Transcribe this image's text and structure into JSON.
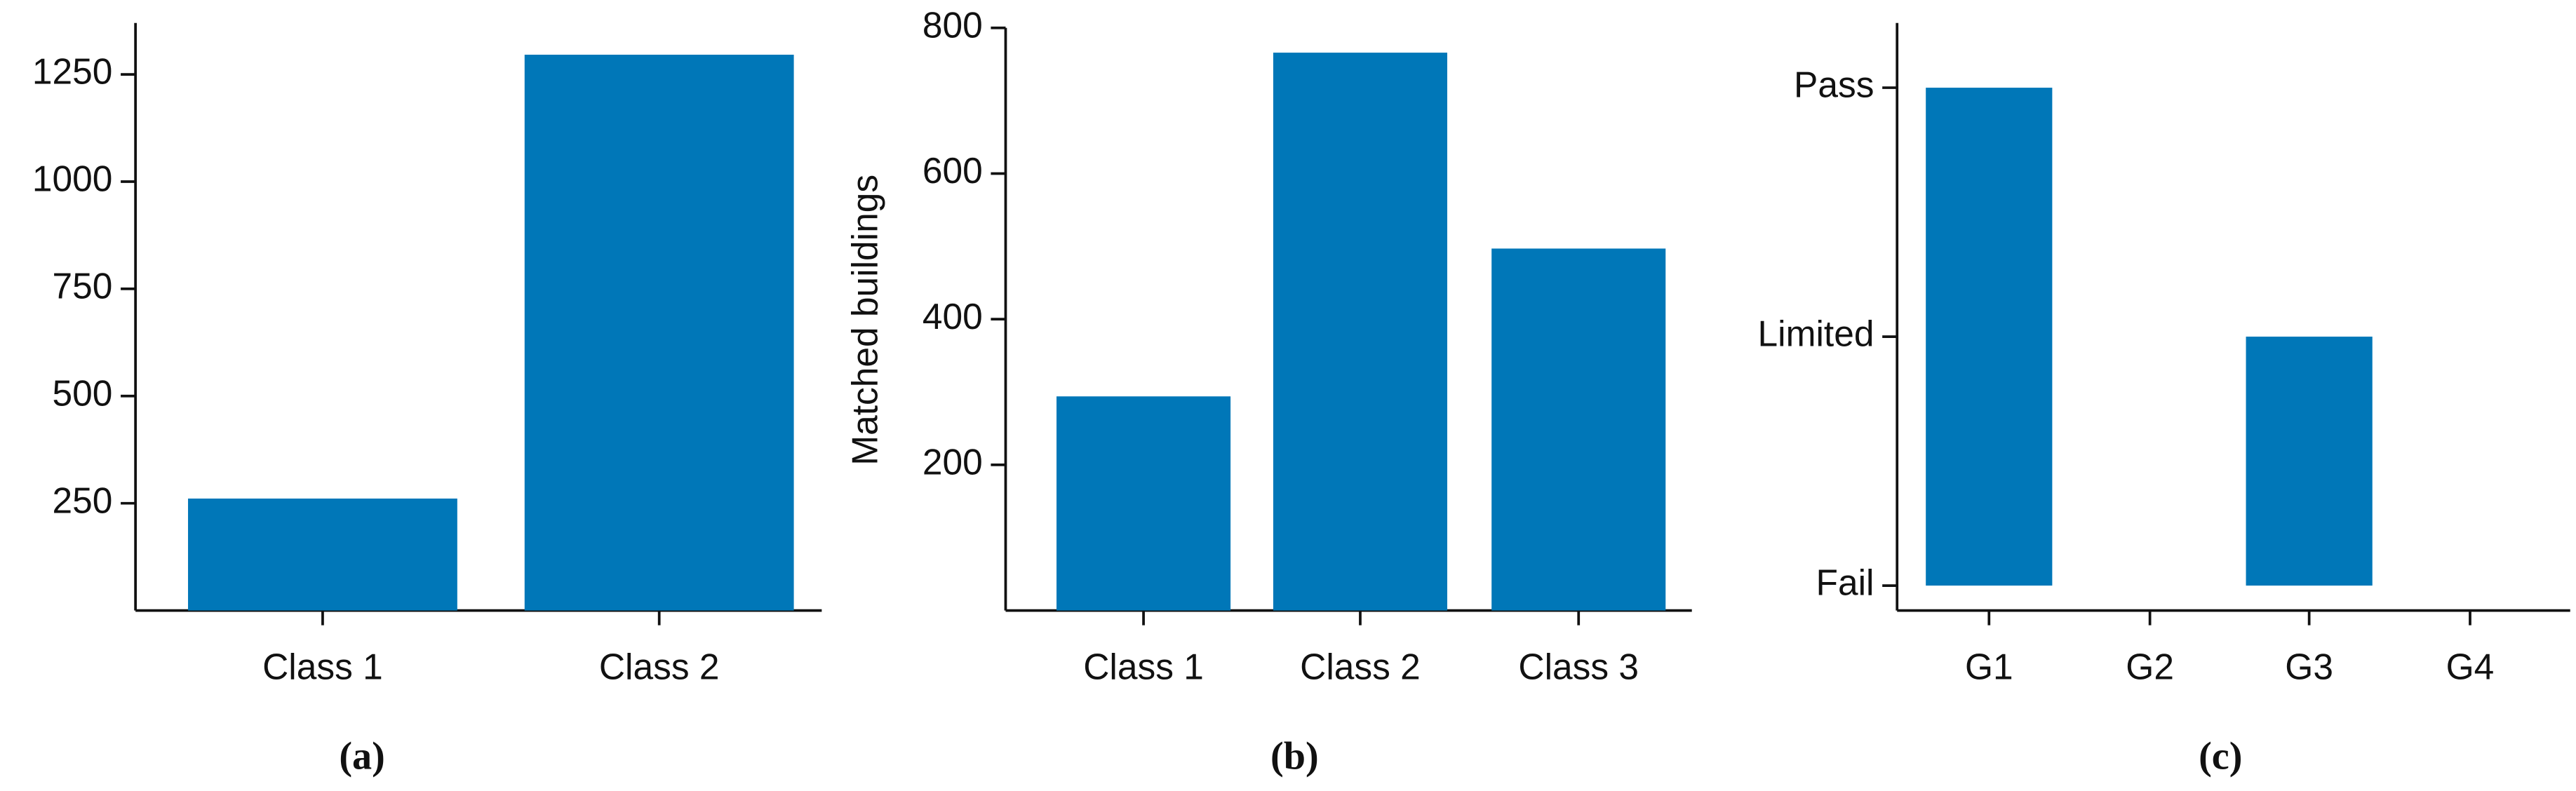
{
  "chart_data": [
    {
      "type": "bar",
      "caption": "(a)",
      "categories": [
        "Class 1",
        "Class 2"
      ],
      "values": [
        261,
        1296
      ],
      "color": "#0077b8",
      "ylim": [
        0,
        1370
      ],
      "yticks": [
        250,
        500,
        750,
        1000,
        1250
      ]
    },
    {
      "type": "bar",
      "caption": "(b)",
      "ylabel": "Matched buildings",
      "categories": [
        "Class 1",
        "Class 2",
        "Class 3"
      ],
      "values": [
        294,
        766,
        497
      ],
      "color": "#0077b8",
      "ylim": [
        0,
        800
      ],
      "yticks": [
        200,
        400,
        600,
        800
      ]
    },
    {
      "type": "bar",
      "caption": "(c)",
      "categories": [
        "G1",
        "G2",
        "G3",
        "G4"
      ],
      "values": [
        2,
        0,
        1,
        0
      ],
      "color": "#0077b8",
      "ylim": [
        -0.1,
        2.26
      ],
      "yticks": [
        {
          "value": 0,
          "label": "Fail"
        },
        {
          "value": 1,
          "label": "Limited"
        },
        {
          "value": 2,
          "label": "Pass"
        }
      ]
    }
  ]
}
